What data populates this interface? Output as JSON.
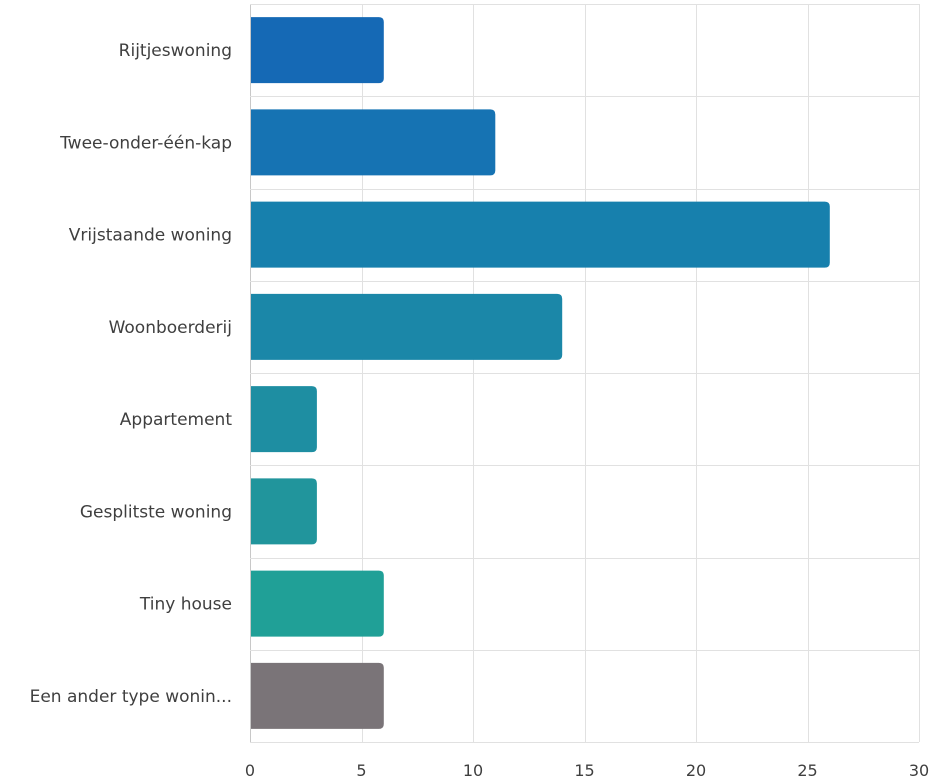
{
  "chart_data": {
    "type": "bar",
    "orientation": "horizontal",
    "title": "",
    "xlabel": "",
    "ylabel": "",
    "xlim": [
      0,
      30
    ],
    "xticks": [
      0,
      5,
      10,
      15,
      20,
      25,
      30
    ],
    "grid": true,
    "legend": "none",
    "categories": [
      "Rijtjeswoning",
      "Twee-onder-één-kap",
      "Vrijstaande woning",
      "Woonboerderij",
      "Appartement",
      "Gesplitste woning",
      "Tiny house",
      "Een ander type wonin..."
    ],
    "values": [
      6,
      11,
      26,
      14,
      3,
      3,
      6,
      6
    ],
    "colors": [
      "#1569b5",
      "#1673b3",
      "#1780ad",
      "#1b87a8",
      "#1e8ea2",
      "#21959c",
      "#20a097",
      "#7a7478"
    ]
  }
}
